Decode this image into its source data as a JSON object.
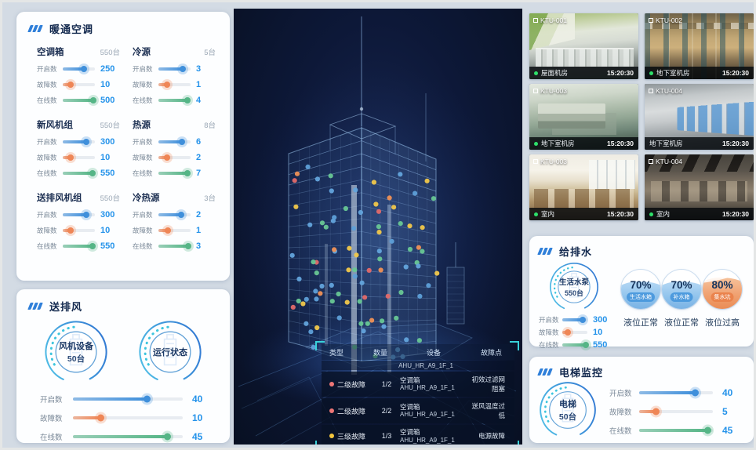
{
  "colors": {
    "blue": "#3f8fdb",
    "orange": "#ef8656",
    "green": "#55b586",
    "value": "#2593ea",
    "accent": "#2f7fd9",
    "cyan": "#38d2da"
  },
  "hvac": {
    "title": "暖通空调",
    "groups": [
      {
        "name": "空调箱",
        "total": "550台",
        "metrics": [
          {
            "label": "开启数",
            "value": "250",
            "color": "blue",
            "pct": 67
          },
          {
            "label": "故障数",
            "value": "10",
            "color": "orange",
            "pct": 25
          },
          {
            "label": "在线数",
            "value": "500",
            "color": "green",
            "pct": 95
          }
        ]
      },
      {
        "name": "冷源",
        "total": "5台",
        "metrics": [
          {
            "label": "开启数",
            "value": "3",
            "color": "blue",
            "pct": 75
          },
          {
            "label": "故障数",
            "value": "1",
            "color": "orange",
            "pct": 28
          },
          {
            "label": "在线数",
            "value": "4",
            "color": "green",
            "pct": 90
          }
        ]
      },
      {
        "name": "新风机组",
        "total": "550台",
        "metrics": [
          {
            "label": "开启数",
            "value": "300",
            "color": "blue",
            "pct": 72
          },
          {
            "label": "故障数",
            "value": "10",
            "color": "orange",
            "pct": 24
          },
          {
            "label": "在线数",
            "value": "550",
            "color": "green",
            "pct": 93
          }
        ]
      },
      {
        "name": "热源",
        "total": "8台",
        "metrics": [
          {
            "label": "开启数",
            "value": "6",
            "color": "blue",
            "pct": 72
          },
          {
            "label": "故障数",
            "value": "2",
            "color": "orange",
            "pct": 28
          },
          {
            "label": "在线数",
            "value": "7",
            "color": "green",
            "pct": 90
          }
        ]
      },
      {
        "name": "送排风机组",
        "total": "550台",
        "metrics": [
          {
            "label": "开启数",
            "value": "300",
            "color": "blue",
            "pct": 72
          },
          {
            "label": "故障数",
            "value": "10",
            "color": "orange",
            "pct": 24
          },
          {
            "label": "在线数",
            "value": "550",
            "color": "green",
            "pct": 93
          }
        ]
      },
      {
        "name": "冷热源",
        "total": "3台",
        "metrics": [
          {
            "label": "开启数",
            "value": "2",
            "color": "blue",
            "pct": 70
          },
          {
            "label": "故障数",
            "value": "1",
            "color": "orange",
            "pct": 30
          },
          {
            "label": "在线数",
            "value": "3",
            "color": "green",
            "pct": 92
          }
        ]
      }
    ]
  },
  "fan": {
    "title": "送排风",
    "gauges": [
      {
        "line1": "风机设备",
        "line2": "50台"
      },
      {
        "line1": "运行状态",
        "line2": ""
      }
    ],
    "metrics": [
      {
        "label": "开启数",
        "value": "40",
        "color": "blue",
        "pct": 67
      },
      {
        "label": "故障数",
        "value": "10",
        "color": "orange",
        "pct": 25
      },
      {
        "label": "在线数",
        "value": "45",
        "color": "green",
        "pct": 86
      }
    ]
  },
  "building": {
    "table": {
      "headers": [
        "类型",
        "数量",
        "设备",
        "故障点"
      ],
      "partial_device": "AHU_HR_A9_1F_1",
      "rows": [
        {
          "level": "二级故障",
          "level_color": "#ee7676",
          "count": "1/2",
          "device_type": "空调箱",
          "device_id": "AHU_HR_A9_1F_1",
          "fault": "初效过滤网阻塞"
        },
        {
          "level": "二级故障",
          "level_color": "#ee7676",
          "count": "2/2",
          "device_type": "空调箱",
          "device_id": "AHU_HR_A9_1F_1",
          "fault": "送风温度过低"
        },
        {
          "level": "三级故障",
          "level_color": "#f3c53d",
          "count": "1/3",
          "device_type": "空调箱",
          "device_id": "AHU_HR_A9_1F_1",
          "fault": "电源故障"
        }
      ]
    }
  },
  "cameras": [
    {
      "id": "KTU-001",
      "location": "屋面机房",
      "time": "15:20:30",
      "online": true
    },
    {
      "id": "KTU-002",
      "location": "地下室机房",
      "time": "15:20:30",
      "online": true
    },
    {
      "id": "KTU-003",
      "location": "地下室机房",
      "time": "15:20:30",
      "online": true
    },
    {
      "id": "KTU-004",
      "location": "地下室机房",
      "time": "15:20:30",
      "online": false
    },
    {
      "id": "KTU-003",
      "location": "室内",
      "time": "15:20:30",
      "online": true
    },
    {
      "id": "KTU-004",
      "location": "室内",
      "time": "15:20:30",
      "online": true
    }
  ],
  "water": {
    "title": "给排水",
    "gauge": {
      "line1": "生活水泵",
      "line2": "550台"
    },
    "metrics": [
      {
        "label": "开启数",
        "value": "300",
        "color": "blue",
        "pct": 82
      },
      {
        "label": "故障数",
        "value": "10",
        "color": "orange",
        "pct": 22
      },
      {
        "label": "在线数",
        "value": "550",
        "color": "green",
        "pct": 95
      }
    ],
    "tanks": [
      {
        "pct": "70%",
        "name": "生活水箱",
        "status": "液位正常",
        "theme": "blue"
      },
      {
        "pct": "70%",
        "name": "补水箱",
        "status": "液位正常",
        "theme": "blue"
      },
      {
        "pct": "80%",
        "name": "集水坑",
        "status": "液位过高",
        "theme": "orange"
      }
    ]
  },
  "elevator": {
    "title": "电梯监控",
    "gauge": {
      "line1": "电梯",
      "line2": "50台"
    },
    "metrics": [
      {
        "label": "开启数",
        "value": "40",
        "color": "blue",
        "pct": 76
      },
      {
        "label": "故障数",
        "value": "5",
        "color": "orange",
        "pct": 22
      },
      {
        "label": "在线数",
        "value": "45",
        "color": "green",
        "pct": 93
      }
    ]
  }
}
